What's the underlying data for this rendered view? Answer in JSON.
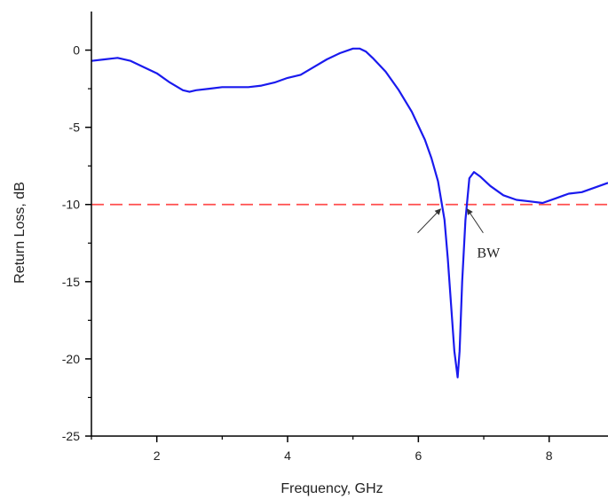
{
  "chart_data": {
    "type": "line",
    "title": "",
    "xlabel": "Frequency, GHz",
    "ylabel": "Return Loss, dB",
    "xlim": [
      1,
      8.9
    ],
    "ylim": [
      -25,
      2.5
    ],
    "xticks": [
      2,
      4,
      6,
      8
    ],
    "yticks": [
      0,
      -5,
      -10,
      -15,
      -20,
      -25
    ],
    "grid": false,
    "series": [
      {
        "color": "#1a1aee",
        "x": [
          1.0,
          1.2,
          1.4,
          1.6,
          1.8,
          2.0,
          2.2,
          2.4,
          2.5,
          2.6,
          2.8,
          3.0,
          3.2,
          3.4,
          3.6,
          3.8,
          4.0,
          4.2,
          4.4,
          4.6,
          4.8,
          5.0,
          5.1,
          5.2,
          5.3,
          5.5,
          5.7,
          5.9,
          6.1,
          6.2,
          6.3,
          6.4,
          6.45,
          6.5,
          6.55,
          6.58,
          6.6,
          6.63,
          6.67,
          6.72,
          6.78,
          6.85,
          6.95,
          7.1,
          7.3,
          7.5,
          7.7,
          7.9,
          8.1,
          8.3,
          8.5,
          8.7,
          8.9
        ],
        "y": [
          -0.7,
          -0.6,
          -0.5,
          -0.7,
          -1.1,
          -1.5,
          -2.1,
          -2.6,
          -2.7,
          -2.6,
          -2.5,
          -2.4,
          -2.4,
          -2.4,
          -2.3,
          -2.1,
          -1.8,
          -1.6,
          -1.1,
          -0.6,
          -0.2,
          0.1,
          0.1,
          -0.1,
          -0.5,
          -1.4,
          -2.6,
          -4.0,
          -5.8,
          -7.0,
          -8.5,
          -11.0,
          -13.5,
          -16.5,
          -19.5,
          -20.5,
          -21.2,
          -19.5,
          -15.0,
          -11.0,
          -8.3,
          -7.9,
          -8.2,
          -8.8,
          -9.4,
          -9.7,
          -9.8,
          -9.9,
          -9.6,
          -9.3,
          -9.2,
          -8.9,
          -8.6
        ]
      }
    ],
    "reference_line": {
      "y": -10,
      "color": "#ff4d4d",
      "style": "dashed"
    },
    "annotations": [
      {
        "text": "BW",
        "arrows_to_x": [
          6.45,
          6.72
        ],
        "arrows_to_y": -10
      }
    ]
  }
}
